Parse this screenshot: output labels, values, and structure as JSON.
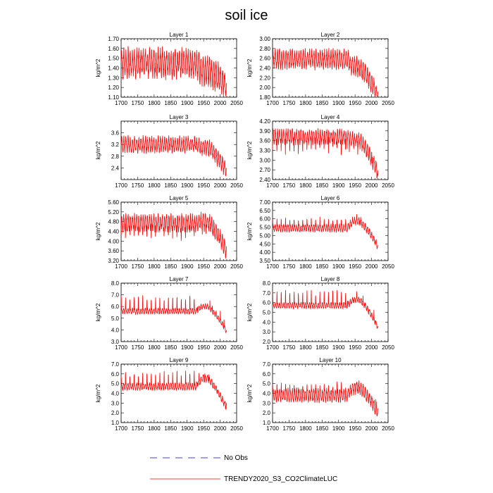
{
  "chart_data": {
    "type": "line",
    "title": "soil ice",
    "ylabel": "kg/m^2",
    "x_ticks": [
      1700,
      1750,
      1800,
      1850,
      1900,
      1950,
      2000,
      2050
    ],
    "xlim": [
      1700,
      2050
    ],
    "data_xrange": [
      1700,
      2019
    ],
    "legend": [
      {
        "label": "No Obs",
        "color": "#0000ff",
        "style": "dashed"
      },
      {
        "label": "TRENDY2020_S3_CO2ClimateLUC",
        "color": "#ff0000",
        "style": "solid"
      }
    ],
    "series_color": "#ff0000",
    "panels": [
      {
        "title": "Layer 1",
        "ylim": [
          1.1,
          1.7
        ],
        "yticks": [
          1.1,
          1.2,
          1.3,
          1.4,
          1.5,
          1.6,
          1.7
        ],
        "ytick_labels": [
          "1.10",
          "1.20",
          "1.30",
          "1.40",
          "1.50",
          "1.60",
          "1.70"
        ],
        "approx": {
          "base": 1.45,
          "amp": 0.12,
          "late_shift": -0.08,
          "end_drop": -0.15,
          "spike_dir": -1,
          "spike_size": 0.03
        }
      },
      {
        "title": "Layer 2",
        "ylim": [
          1.8,
          3.0
        ],
        "yticks": [
          1.8,
          2.0,
          2.2,
          2.4,
          2.6,
          2.8,
          3.0
        ],
        "ytick_labels": [
          "1.80",
          "2.00",
          "2.20",
          "2.40",
          "2.60",
          "2.80",
          "3.00"
        ],
        "approx": {
          "base": 2.58,
          "amp": 0.16,
          "late_shift": -0.15,
          "end_drop": -0.6,
          "spike_dir": -1,
          "spike_size": 0.05
        }
      },
      {
        "title": "Layer 3",
        "ylim": [
          2.0,
          4.0
        ],
        "yticks": [
          2.4,
          2.8,
          3.2,
          3.6
        ],
        "ytick_labels": [
          "2.4",
          "2.8",
          "3.2",
          "3.6"
        ],
        "approx": {
          "base": 3.2,
          "amp": 0.22,
          "late_shift": -0.1,
          "end_drop": -0.8,
          "spike_dir": -1,
          "spike_size": 0.1
        }
      },
      {
        "title": "Layer 4",
        "ylim": [
          2.4,
          4.2
        ],
        "yticks": [
          2.4,
          2.7,
          3.0,
          3.3,
          3.6,
          3.9,
          4.2
        ],
        "ytick_labels": [
          "2.40",
          "2.70",
          "3.00",
          "3.30",
          "3.60",
          "3.90",
          "4.20"
        ],
        "approx": {
          "base": 3.72,
          "amp": 0.18,
          "late_shift": -0.1,
          "end_drop": -1.0,
          "spike_dir": -1,
          "spike_size": 0.45
        }
      },
      {
        "title": "Layer 5",
        "ylim": [
          3.2,
          5.6
        ],
        "yticks": [
          3.2,
          3.6,
          4.0,
          4.4,
          4.8,
          5.2,
          5.6
        ],
        "ytick_labels": [
          "3.20",
          "3.60",
          "4.00",
          "4.40",
          "4.80",
          "5.20",
          "5.60"
        ],
        "approx": {
          "base": 4.75,
          "amp": 0.28,
          "late_shift": 0.05,
          "end_drop": -1.2,
          "spike_dir": -1,
          "spike_size": 0.55
        }
      },
      {
        "title": "Layer 6",
        "ylim": [
          3.5,
          7.0
        ],
        "yticks": [
          3.5,
          4.0,
          4.5,
          5.0,
          5.5,
          6.0,
          6.5,
          7.0
        ],
        "ytick_labels": [
          "3.50",
          "4.00",
          "4.50",
          "5.00",
          "5.50",
          "6.00",
          "6.50",
          "7.00"
        ],
        "approx": {
          "base": 5.45,
          "amp": 0.18,
          "late_shift": 0.4,
          "end_drop": -1.5,
          "spike_dir": 1,
          "spike_size": 0.45
        }
      },
      {
        "title": "Layer 7",
        "ylim": [
          3.0,
          8.0
        ],
        "yticks": [
          3.0,
          4.0,
          5.0,
          6.0,
          7.0,
          8.0
        ],
        "ytick_labels": [
          "3.0",
          "4.0",
          "5.0",
          "6.0",
          "7.0",
          "8.0"
        ],
        "approx": {
          "base": 5.6,
          "amp": 0.2,
          "late_shift": 0.4,
          "end_drop": -2.1,
          "spike_dir": 1,
          "spike_size": 1.0
        }
      },
      {
        "title": "Layer 8",
        "ylim": [
          2.0,
          8.0
        ],
        "yticks": [
          2.0,
          3.0,
          4.0,
          5.0,
          6.0,
          7.0,
          8.0
        ],
        "ytick_labels": [
          "2.0",
          "3.0",
          "4.0",
          "5.0",
          "6.0",
          "7.0",
          "8.0"
        ],
        "approx": {
          "base": 5.7,
          "amp": 0.25,
          "late_shift": 0.6,
          "end_drop": -2.8,
          "spike_dir": 1,
          "spike_size": 1.2
        }
      },
      {
        "title": "Layer 9",
        "ylim": [
          1.0,
          7.0
        ],
        "yticks": [
          1.0,
          2.0,
          3.0,
          4.0,
          5.0,
          6.0,
          7.0
        ],
        "ytick_labels": [
          "1.0",
          "2.0",
          "3.0",
          "4.0",
          "5.0",
          "6.0",
          "7.0"
        ],
        "approx": {
          "base": 4.7,
          "amp": 0.3,
          "late_shift": 0.8,
          "end_drop": -3.0,
          "spike_dir": 1,
          "spike_size": 1.2
        }
      },
      {
        "title": "Layer 10",
        "ylim": [
          1.0,
          7.0
        ],
        "yticks": [
          1.0,
          2.0,
          3.0,
          4.0,
          5.0,
          6.0,
          7.0
        ],
        "ytick_labels": [
          "1.0",
          "2.0",
          "3.0",
          "4.0",
          "5.0",
          "6.0",
          "7.0"
        ],
        "approx": {
          "base": 3.8,
          "amp": 0.55,
          "late_shift": 0.8,
          "end_drop": -2.5,
          "spike_dir": 1,
          "spike_size": 0.8
        }
      }
    ]
  }
}
